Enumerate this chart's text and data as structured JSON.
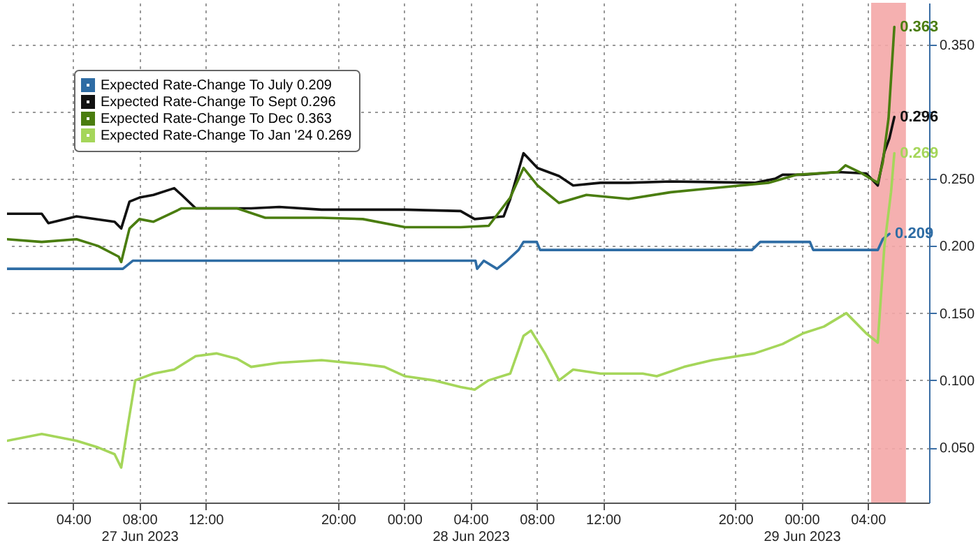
{
  "chart_data": {
    "type": "line",
    "legend": "top left",
    "grid": true,
    "xlim": [
      "2023-06-27T00:00",
      "2023-06-29T07:42"
    ],
    "ylim": [
      0.009,
      0.381
    ],
    "xticks": [
      {
        "value": "2023-06-27T04:00",
        "label": "04:00"
      },
      {
        "value": "2023-06-27T08:00",
        "label": "08:00\n27 Jun 2023"
      },
      {
        "value": "2023-06-27T12:00",
        "label": "12:00"
      },
      {
        "value": "2023-06-27T20:00",
        "label": "20:00"
      },
      {
        "value": "2023-06-28T00:00",
        "label": "00:00"
      },
      {
        "value": "2023-06-28T04:00",
        "label": "04:00\n28 Jun 2023"
      },
      {
        "value": "2023-06-28T08:00",
        "label": "08:00"
      },
      {
        "value": "2023-06-28T12:00",
        "label": "12:00"
      },
      {
        "value": "2023-06-28T20:00",
        "label": "20:00"
      },
      {
        "value": "2023-06-29T00:00",
        "label": "00:00\n29 Jun 2023"
      },
      {
        "value": "2023-06-29T04:00",
        "label": "04:00"
      }
    ],
    "yticks": [
      {
        "value": 0.05,
        "label": "0.050"
      },
      {
        "value": 0.1,
        "label": "0.100"
      },
      {
        "value": 0.15,
        "label": "0.150"
      },
      {
        "value": 0.2,
        "label": "0.200"
      },
      {
        "value": 0.25,
        "label": "0.250"
      },
      {
        "value": 0.3,
        "label": null
      },
      {
        "value": 0.35,
        "label": "0.350"
      }
    ],
    "bands": [
      {
        "axis": "x",
        "from": "2023-06-29T04:12",
        "to": "2023-06-29T06:18",
        "color": "#f4a7a7"
      }
    ],
    "series": [
      {
        "name": "Expected Rate-Change To July 0.209",
        "color": "#2e6ca4",
        "x": [
          "2023-06-27T00:00",
          "2023-06-27T07:00",
          "2023-06-27T07:36",
          "2023-06-28T04:18",
          "2023-06-28T04:24",
          "2023-06-28T04:48",
          "2023-06-28T05:36",
          "2023-06-28T06:12",
          "2023-06-28T06:54",
          "2023-06-28T07:12",
          "2023-06-28T08:00",
          "2023-06-28T08:12",
          "2023-06-28T21:00",
          "2023-06-28T21:30",
          "2023-06-29T00:30",
          "2023-06-29T00:42",
          "2023-06-29T04:36",
          "2023-06-29T04:54",
          "2023-06-29T05:18"
        ],
        "values": [
          0.183,
          0.183,
          0.189,
          0.189,
          0.183,
          0.189,
          0.183,
          0.189,
          0.197,
          0.203,
          0.203,
          0.197,
          0.197,
          0.203,
          0.203,
          0.197,
          0.197,
          0.205,
          0.209
        ],
        "value_labels": [
          null,
          null,
          null,
          null,
          null,
          null,
          null,
          null,
          null,
          null,
          null,
          null,
          null,
          null,
          null,
          null,
          null,
          null,
          "0.209"
        ]
      },
      {
        "name": "Expected Rate-Change To Sept 0.296",
        "color": "#111111",
        "x": [
          "2023-06-27T00:00",
          "2023-06-27T02:06",
          "2023-06-27T02:30",
          "2023-06-27T04:12",
          "2023-06-27T06:30",
          "2023-06-27T06:54",
          "2023-06-27T07:24",
          "2023-06-27T08:00",
          "2023-06-27T08:51",
          "2023-06-27T10:06",
          "2023-06-27T10:33",
          "2023-06-27T11:24",
          "2023-06-27T14:45",
          "2023-06-27T16:27",
          "2023-06-27T19:00",
          "2023-06-28T00:03",
          "2023-06-28T03:24",
          "2023-06-28T04:15",
          "2023-06-28T06:00",
          "2023-06-28T06:24",
          "2023-06-28T07:12",
          "2023-06-28T08:03",
          "2023-06-28T09:21",
          "2023-06-28T10:12",
          "2023-06-28T11:51",
          "2023-06-28T13:33",
          "2023-06-28T16:06",
          "2023-06-28T21:09",
          "2023-06-28T22:24",
          "2023-06-28T22:51",
          "2023-06-29T00:06",
          "2023-06-29T02:12",
          "2023-06-29T03:54",
          "2023-06-29T04:36",
          "2023-06-29T05:00",
          "2023-06-29T05:18",
          "2023-06-29T05:36"
        ],
        "values": [
          0.224,
          0.224,
          0.217,
          0.222,
          0.218,
          0.213,
          0.233,
          0.236,
          0.238,
          0.243,
          0.238,
          0.228,
          0.228,
          0.229,
          0.227,
          0.227,
          0.226,
          0.22,
          0.222,
          0.235,
          0.269,
          0.258,
          0.252,
          0.245,
          0.247,
          0.247,
          0.248,
          0.247,
          0.25,
          0.253,
          0.253,
          0.255,
          0.254,
          0.245,
          0.27,
          0.28,
          0.296
        ],
        "value_labels": [
          null,
          null,
          null,
          null,
          null,
          null,
          null,
          null,
          null,
          null,
          null,
          null,
          null,
          null,
          null,
          null,
          null,
          null,
          null,
          null,
          null,
          null,
          null,
          null,
          null,
          null,
          null,
          null,
          null,
          null,
          null,
          null,
          null,
          null,
          null,
          null,
          "0.296"
        ]
      },
      {
        "name": "Expected Rate-Change To Dec 0.363",
        "color": "#4a7d0f",
        "x": [
          "2023-06-27T00:00",
          "2023-06-27T02:06",
          "2023-06-27T04:12",
          "2023-06-27T05:30",
          "2023-06-27T06:45",
          "2023-06-27T06:54",
          "2023-06-27T07:24",
          "2023-06-27T08:00",
          "2023-06-27T08:51",
          "2023-06-27T10:33",
          "2023-06-27T13:54",
          "2023-06-27T15:36",
          "2023-06-27T19:00",
          "2023-06-27T21:30",
          "2023-06-28T00:03",
          "2023-06-28T03:24",
          "2023-06-28T05:06",
          "2023-06-28T06:24",
          "2023-06-28T07:12",
          "2023-06-28T08:03",
          "2023-06-28T09:21",
          "2023-06-28T11:00",
          "2023-06-28T13:33",
          "2023-06-28T16:06",
          "2023-06-28T19:27",
          "2023-06-28T22:00",
          "2023-06-28T23:42",
          "2023-06-29T02:12",
          "2023-06-29T02:39",
          "2023-06-29T03:30",
          "2023-06-29T04:36",
          "2023-06-29T04:54",
          "2023-06-29T05:15",
          "2023-06-29T05:36"
        ],
        "values": [
          0.205,
          0.203,
          0.205,
          0.2,
          0.192,
          0.188,
          0.213,
          0.22,
          0.218,
          0.228,
          0.228,
          0.221,
          0.221,
          0.22,
          0.214,
          0.214,
          0.215,
          0.236,
          0.258,
          0.245,
          0.232,
          0.238,
          0.235,
          0.24,
          0.244,
          0.247,
          0.253,
          0.255,
          0.26,
          0.255,
          0.247,
          0.262,
          0.295,
          0.363
        ],
        "value_labels": [
          null,
          null,
          null,
          null,
          null,
          null,
          null,
          null,
          null,
          null,
          null,
          null,
          null,
          null,
          null,
          null,
          null,
          null,
          null,
          null,
          null,
          null,
          null,
          null,
          null,
          null,
          null,
          null,
          null,
          null,
          null,
          null,
          null,
          "0.363"
        ]
      },
      {
        "name": "Expected Rate-Change To Jan '24 0.269",
        "color": "#a5d65a",
        "x": [
          "2023-06-27T00:00",
          "2023-06-27T02:06",
          "2023-06-27T04:12",
          "2023-06-27T05:30",
          "2023-06-27T06:30",
          "2023-06-27T06:54",
          "2023-06-27T07:21",
          "2023-06-27T07:45",
          "2023-06-27T08:51",
          "2023-06-27T10:06",
          "2023-06-27T11:24",
          "2023-06-27T12:39",
          "2023-06-27T13:54",
          "2023-06-27T14:45",
          "2023-06-27T16:27",
          "2023-06-27T19:00",
          "2023-06-27T21:30",
          "2023-06-27T22:48",
          "2023-06-28T00:03",
          "2023-06-28T01:45",
          "2023-06-28T03:24",
          "2023-06-28T04:15",
          "2023-06-28T05:06",
          "2023-06-28T06:24",
          "2023-06-28T07:12",
          "2023-06-28T07:39",
          "2023-06-28T08:30",
          "2023-06-28T09:21",
          "2023-06-28T10:12",
          "2023-06-28T11:51",
          "2023-06-28T14:24",
          "2023-06-28T15:15",
          "2023-06-28T16:54",
          "2023-06-28T18:36",
          "2023-06-28T21:09",
          "2023-06-28T22:51",
          "2023-06-29T00:06",
          "2023-06-29T01:21",
          "2023-06-29T02:42",
          "2023-06-29T03:54",
          "2023-06-29T04:36",
          "2023-06-29T05:00",
          "2023-06-29T05:24",
          "2023-06-29T05:36"
        ],
        "values": [
          0.055,
          0.06,
          0.055,
          0.05,
          0.045,
          0.035,
          0.07,
          0.1,
          0.105,
          0.108,
          0.118,
          0.12,
          0.116,
          0.11,
          0.113,
          0.115,
          0.112,
          0.11,
          0.103,
          0.1,
          0.095,
          0.093,
          0.1,
          0.105,
          0.133,
          0.137,
          0.12,
          0.1,
          0.108,
          0.105,
          0.105,
          0.103,
          0.11,
          0.115,
          0.12,
          0.127,
          0.135,
          0.14,
          0.15,
          0.135,
          0.128,
          0.2,
          0.24,
          0.269
        ],
        "value_labels": [
          null,
          null,
          null,
          null,
          null,
          null,
          null,
          null,
          null,
          null,
          null,
          null,
          null,
          null,
          null,
          null,
          null,
          null,
          null,
          null,
          null,
          null,
          null,
          null,
          null,
          null,
          null,
          null,
          null,
          null,
          null,
          null,
          null,
          null,
          null,
          null,
          null,
          null,
          null,
          null,
          null,
          null,
          null,
          "0.269"
        ]
      }
    ]
  }
}
